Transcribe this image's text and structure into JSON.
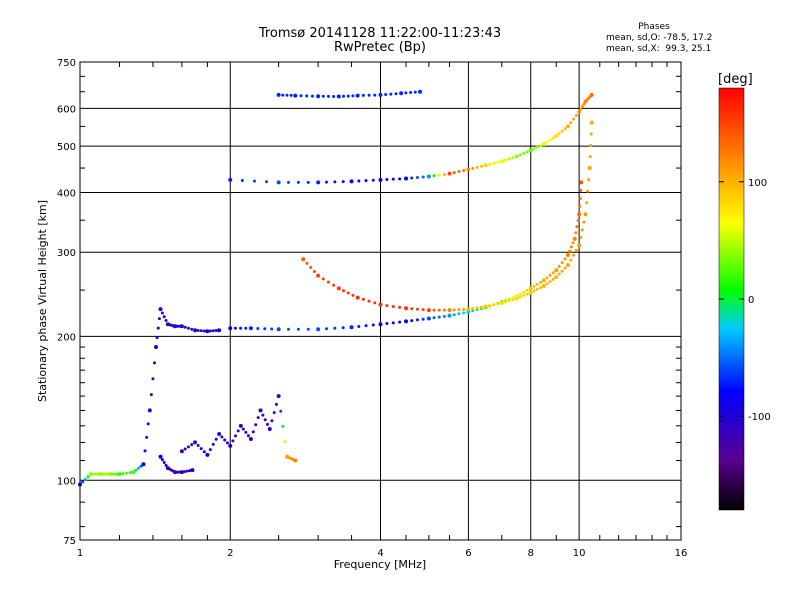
{
  "header": {
    "title_line1": "Tromsø 20141128 11:22:00-11:23:43",
    "title_line2": "RwPretec (Bp)",
    "phases_label": "Phases",
    "stat_o": "mean, sd,O: -78.5, 17.2",
    "stat_x": "mean, sd,X:  99.3, 25.1"
  },
  "chart_data": {
    "type": "scatter",
    "xlabel": "Frequency [MHz]",
    "ylabel": "Stationary phase Virtual Height [km]",
    "xscale": "log",
    "yscale": "log",
    "xlim": [
      1,
      16
    ],
    "ylim": [
      75,
      750
    ],
    "xticks": [
      1,
      2,
      4,
      6,
      8,
      10,
      16
    ],
    "yticks": [
      75,
      100,
      200,
      300,
      400,
      500,
      600,
      750
    ],
    "grid": true,
    "colorbar": {
      "label": "[deg]",
      "range": [
        -180,
        180
      ],
      "ticks": [
        100,
        0,
        -100
      ]
    },
    "series": [
      {
        "trace": "F1-O low curve",
        "x": [
          1.0,
          1.05,
          1.1,
          1.15,
          1.2,
          1.28,
          1.34,
          1.38,
          1.42,
          1.45,
          1.5,
          1.55,
          1.6,
          1.7,
          1.8,
          1.9
        ],
        "y": [
          98,
          103,
          103,
          103,
          103,
          104,
          108,
          140,
          190,
          228,
          212,
          210,
          210,
          206,
          205,
          206
        ],
        "phase": [
          -100,
          40,
          40,
          40,
          20,
          20,
          -80,
          -100,
          -100,
          -110,
          -110,
          -100,
          -100,
          -110,
          -100,
          -100
        ]
      },
      {
        "trace": "F1-O dip",
        "x": [
          1.45,
          1.5,
          1.55,
          1.6,
          1.68
        ],
        "y": [
          112,
          106,
          104,
          104,
          105
        ],
        "phase": [
          -80,
          -110,
          -120,
          -110,
          -100
        ]
      },
      {
        "trace": "F-O main",
        "x": [
          2.0,
          2.2,
          2.5,
          3.0,
          3.5,
          4.0,
          4.5,
          5.0,
          5.5,
          6.0,
          6.5,
          7.0,
          7.5,
          8.0,
          8.5,
          9.0,
          9.5,
          9.8,
          10.0,
          10.1
        ],
        "y": [
          208,
          208,
          207,
          207,
          209,
          212,
          215,
          218,
          221,
          225,
          230,
          236,
          243,
          252,
          262,
          275,
          296,
          320,
          360,
          420
        ],
        "phase": [
          -80,
          -70,
          -60,
          -60,
          -70,
          -80,
          -80,
          -60,
          -40,
          -20,
          0,
          30,
          70,
          90,
          100,
          110,
          120,
          120,
          130,
          140
        ]
      },
      {
        "trace": "F-X",
        "x": [
          2.8,
          3.0,
          3.3,
          3.6,
          4.0,
          4.5,
          5.0,
          5.5,
          6.0,
          6.5,
          7.0,
          7.5,
          8.0,
          8.5,
          9.0,
          9.5,
          10.0,
          10.3,
          10.5,
          10.6
        ],
        "y": [
          290,
          268,
          252,
          241,
          233,
          229,
          227,
          227,
          228,
          231,
          235,
          240,
          247,
          255,
          266,
          282,
          310,
          360,
          450,
          560
        ],
        "phase": [
          140,
          150,
          155,
          160,
          160,
          158,
          150,
          120,
          100,
          90,
          80,
          80,
          90,
          95,
          100,
          105,
          110,
          110,
          110,
          105
        ]
      },
      {
        "trace": "F upper",
        "x": [
          2.0,
          2.5,
          3.0,
          3.5,
          4.0,
          4.5,
          5.0,
          5.5,
          6.0,
          6.5,
          7.0,
          7.5,
          8.0,
          8.5,
          9.0,
          9.5,
          10.0,
          10.3,
          10.6
        ],
        "y": [
          425,
          420,
          420,
          422,
          425,
          428,
          432,
          438,
          447,
          456,
          465,
          476,
          490,
          505,
          525,
          550,
          590,
          620,
          640
        ],
        "phase": [
          -70,
          -60,
          -70,
          -80,
          -90,
          -80,
          -40,
          150,
          120,
          80,
          60,
          40,
          30,
          60,
          80,
          100,
          110,
          120,
          130
        ]
      },
      {
        "trace": "E cluster",
        "x": [
          1.6,
          1.7,
          1.8,
          1.9,
          2.0,
          2.1,
          2.2,
          2.3,
          2.4,
          2.5,
          2.6,
          2.7
        ],
        "y": [
          115,
          120,
          113,
          125,
          118,
          130,
          122,
          140,
          128,
          150,
          112,
          110
        ],
        "phase": [
          -110,
          -110,
          -100,
          -110,
          -100,
          -110,
          -100,
          -110,
          -100,
          -120,
          110,
          120
        ]
      },
      {
        "trace": "multi-hop",
        "x": [
          2.5,
          2.7,
          3.0,
          3.3,
          3.6,
          4.0,
          4.4,
          4.8
        ],
        "y": [
          640,
          638,
          636,
          635,
          638,
          640,
          645,
          650
        ],
        "phase": [
          -70,
          -70,
          -70,
          -70,
          -70,
          -70,
          -70,
          -70
        ]
      }
    ]
  }
}
